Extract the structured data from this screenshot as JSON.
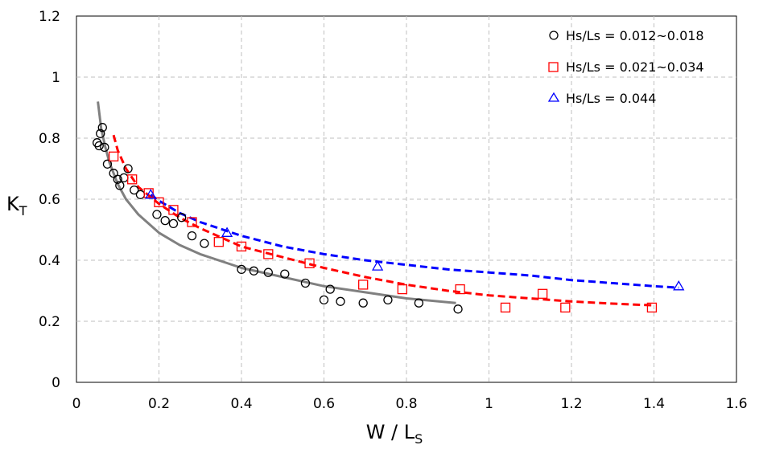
{
  "chart_data": {
    "type": "scatter",
    "xlabel": {
      "main": "W / L",
      "sub": "S"
    },
    "ylabel": {
      "main": "K",
      "sub": "T"
    },
    "xlim": [
      0,
      1.6
    ],
    "ylim": [
      0,
      1.2
    ],
    "xticks": [
      "0",
      "0.2",
      "0.4",
      "0.6",
      "0.8",
      "1",
      "1.2",
      "1.4",
      "1.6"
    ],
    "yticks": [
      "0",
      "0.2",
      "0.4",
      "0.6",
      "0.8",
      "1",
      "1.2"
    ],
    "grid": "dashed",
    "legend_position": "top-right",
    "series": [
      {
        "name": "Hs/Ls = 0.012~0.018",
        "marker": "circle",
        "color": "#000000",
        "points": [
          [
            0.05,
            0.785
          ],
          [
            0.055,
            0.775
          ],
          [
            0.058,
            0.815
          ],
          [
            0.063,
            0.835
          ],
          [
            0.068,
            0.77
          ],
          [
            0.075,
            0.715
          ],
          [
            0.09,
            0.685
          ],
          [
            0.1,
            0.665
          ],
          [
            0.105,
            0.645
          ],
          [
            0.115,
            0.67
          ],
          [
            0.125,
            0.7
          ],
          [
            0.14,
            0.63
          ],
          [
            0.155,
            0.615
          ],
          [
            0.195,
            0.55
          ],
          [
            0.215,
            0.53
          ],
          [
            0.235,
            0.52
          ],
          [
            0.255,
            0.54
          ],
          [
            0.28,
            0.48
          ],
          [
            0.31,
            0.455
          ],
          [
            0.4,
            0.37
          ],
          [
            0.43,
            0.365
          ],
          [
            0.465,
            0.36
          ],
          [
            0.505,
            0.355
          ],
          [
            0.555,
            0.325
          ],
          [
            0.6,
            0.27
          ],
          [
            0.615,
            0.305
          ],
          [
            0.64,
            0.265
          ],
          [
            0.695,
            0.26
          ],
          [
            0.755,
            0.27
          ],
          [
            0.83,
            0.26
          ],
          [
            0.925,
            0.24
          ]
        ]
      },
      {
        "name": "Hs/Ls = 0.021~0.034",
        "marker": "square",
        "color": "#ff0000",
        "points": [
          [
            0.09,
            0.74
          ],
          [
            0.135,
            0.665
          ],
          [
            0.175,
            0.62
          ],
          [
            0.2,
            0.59
          ],
          [
            0.235,
            0.565
          ],
          [
            0.28,
            0.525
          ],
          [
            0.345,
            0.46
          ],
          [
            0.4,
            0.445
          ],
          [
            0.465,
            0.42
          ],
          [
            0.565,
            0.39
          ],
          [
            0.695,
            0.32
          ],
          [
            0.79,
            0.305
          ],
          [
            0.93,
            0.305
          ],
          [
            1.04,
            0.245
          ],
          [
            1.13,
            0.29
          ],
          [
            1.185,
            0.245
          ],
          [
            1.395,
            0.245
          ]
        ]
      },
      {
        "name": "Hs/Ls = 0.044",
        "marker": "triangle",
        "color": "#0000ff",
        "points": [
          [
            0.18,
            0.615
          ],
          [
            0.365,
            0.49
          ],
          [
            0.73,
            0.38
          ],
          [
            1.46,
            0.315
          ]
        ]
      }
    ],
    "fit_curves": [
      {
        "color": "#808080",
        "style": "solid",
        "points": [
          [
            0.052,
            0.92
          ],
          [
            0.06,
            0.83
          ],
          [
            0.07,
            0.77
          ],
          [
            0.08,
            0.72
          ],
          [
            0.1,
            0.65
          ],
          [
            0.12,
            0.6
          ],
          [
            0.15,
            0.55
          ],
          [
            0.2,
            0.49
          ],
          [
            0.25,
            0.45
          ],
          [
            0.3,
            0.42
          ],
          [
            0.4,
            0.375
          ],
          [
            0.5,
            0.345
          ],
          [
            0.6,
            0.315
          ],
          [
            0.7,
            0.295
          ],
          [
            0.8,
            0.275
          ],
          [
            0.92,
            0.26
          ]
        ]
      },
      {
        "color": "#ff0000",
        "style": "dashed",
        "points": [
          [
            0.09,
            0.81
          ],
          [
            0.1,
            0.76
          ],
          [
            0.12,
            0.7
          ],
          [
            0.15,
            0.64
          ],
          [
            0.2,
            0.585
          ],
          [
            0.25,
            0.54
          ],
          [
            0.3,
            0.505
          ],
          [
            0.4,
            0.445
          ],
          [
            0.5,
            0.41
          ],
          [
            0.6,
            0.375
          ],
          [
            0.7,
            0.345
          ],
          [
            0.8,
            0.32
          ],
          [
            0.9,
            0.3
          ],
          [
            1.0,
            0.285
          ],
          [
            1.1,
            0.275
          ],
          [
            1.2,
            0.265
          ],
          [
            1.3,
            0.258
          ],
          [
            1.4,
            0.252
          ]
        ]
      },
      {
        "color": "#0000ff",
        "style": "dashed",
        "points": [
          [
            0.18,
            0.615
          ],
          [
            0.2,
            0.595
          ],
          [
            0.25,
            0.555
          ],
          [
            0.3,
            0.525
          ],
          [
            0.4,
            0.48
          ],
          [
            0.5,
            0.445
          ],
          [
            0.6,
            0.42
          ],
          [
            0.7,
            0.4
          ],
          [
            0.8,
            0.385
          ],
          [
            0.9,
            0.37
          ],
          [
            1.0,
            0.36
          ],
          [
            1.1,
            0.35
          ],
          [
            1.2,
            0.335
          ],
          [
            1.3,
            0.325
          ],
          [
            1.4,
            0.315
          ],
          [
            1.46,
            0.31
          ]
        ]
      }
    ]
  }
}
